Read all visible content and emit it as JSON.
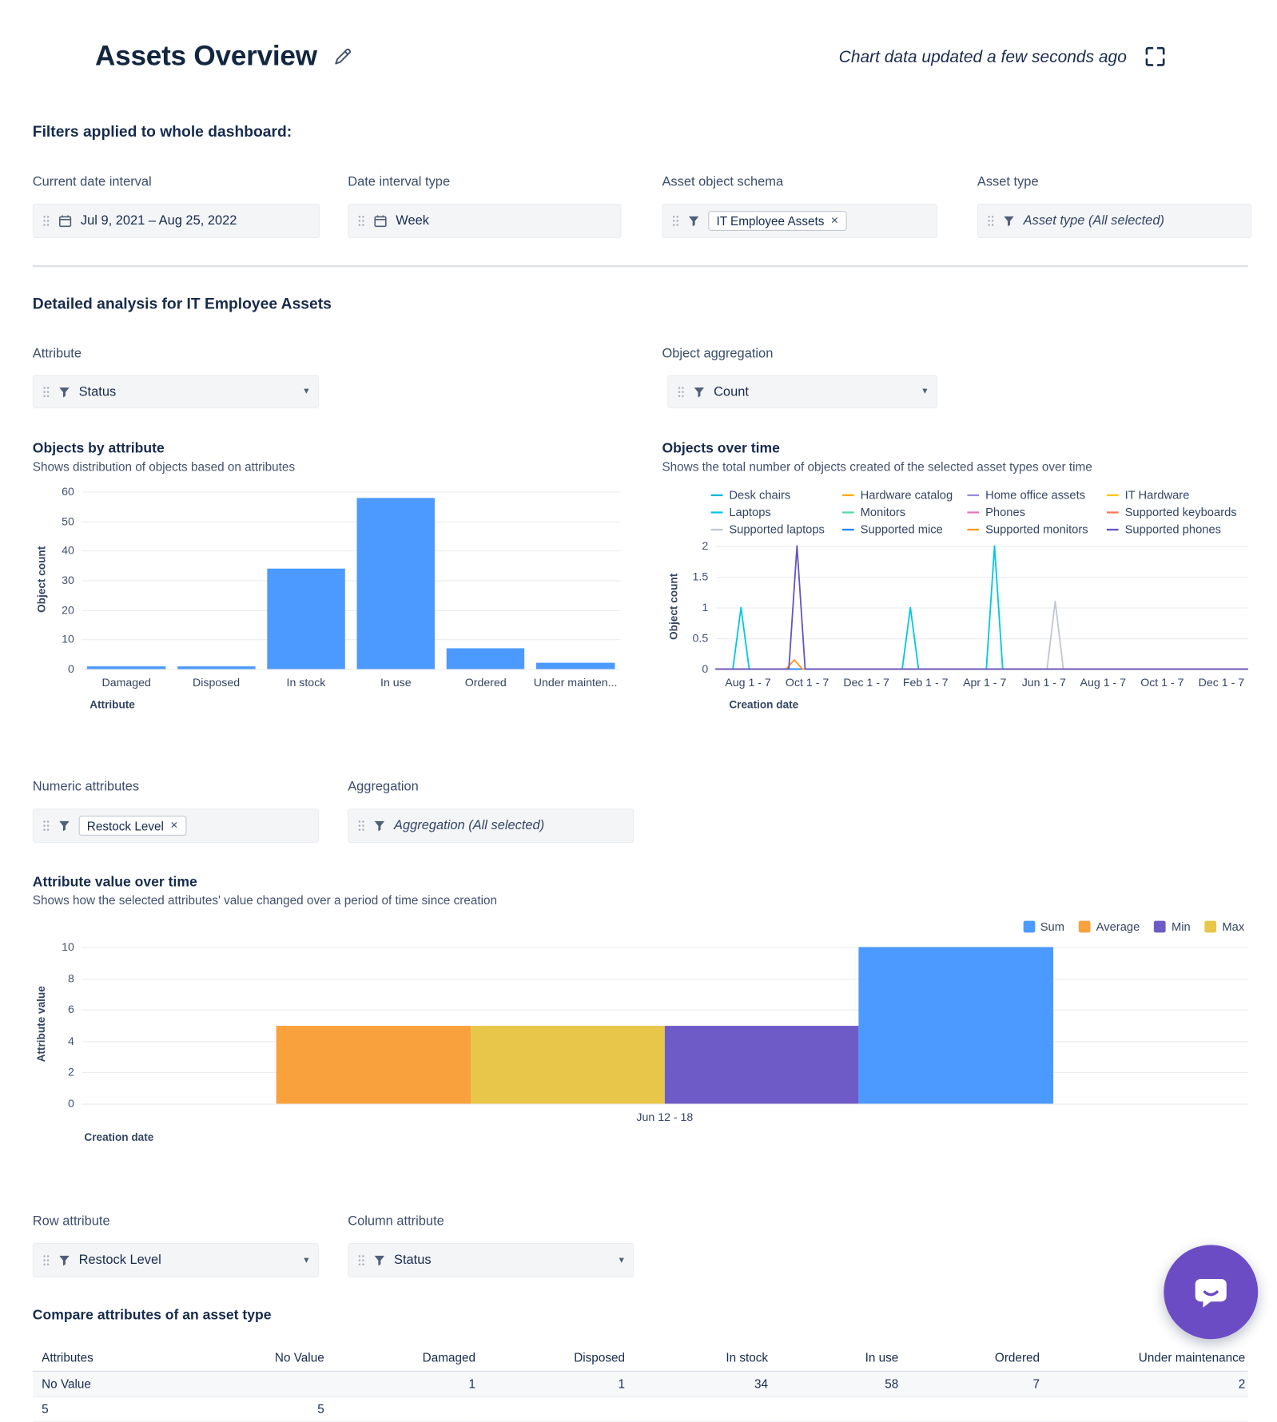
{
  "header": {
    "title": "Assets Overview",
    "updated_text": "Chart data updated a few seconds ago"
  },
  "icons": {
    "chevron": "▾",
    "close": "✕"
  },
  "filters": {
    "heading": "Filters applied to whole dashboard:",
    "current_date_interval": {
      "label": "Current date interval",
      "value": "Jul 9, 2021  –  Aug 25, 2022"
    },
    "date_interval_type": {
      "label": "Date interval type",
      "value": "Week"
    },
    "asset_object_schema": {
      "label": "Asset object schema",
      "chip": "IT Employee Assets"
    },
    "asset_type": {
      "label": "Asset type",
      "value": "Asset type (All selected)"
    }
  },
  "detailed": {
    "heading": "Detailed analysis for IT Employee Assets",
    "attribute": {
      "label": "Attribute",
      "value": "Status"
    },
    "object_aggregation": {
      "label": "Object aggregation",
      "value": "Count"
    },
    "numeric_attributes": {
      "label": "Numeric attributes",
      "chip": "Restock Level"
    },
    "aggregation": {
      "label": "Aggregation",
      "value": "Aggregation (All selected)"
    },
    "row_attribute": {
      "label": "Row attribute",
      "value": "Restock Level"
    },
    "column_attribute": {
      "label": "Column attribute",
      "value": "Status"
    }
  },
  "compare": {
    "heading": "Compare attributes of an asset type",
    "table": {
      "headers": [
        "Attributes",
        "No Value",
        "Damaged",
        "Disposed",
        "In stock",
        "In use",
        "Ordered",
        "Under maintenance"
      ],
      "rows": [
        [
          "No Value",
          "",
          "1",
          "1",
          "34",
          "58",
          "7",
          "2"
        ],
        [
          "5",
          "5",
          "",
          "",
          "",
          "",
          "",
          ""
        ]
      ]
    }
  },
  "chart_data": [
    {
      "id": "objects-by-attribute",
      "type": "bar",
      "title": "Objects by attribute",
      "subtitle": "Shows distribution of objects based on attributes",
      "categories": [
        "Damaged",
        "Disposed",
        "In stock",
        "In use",
        "Ordered",
        "Under mainten..."
      ],
      "values": [
        1,
        1,
        34,
        58,
        7,
        2
      ],
      "bar_color": "#4C9AFF",
      "xlabel": "Attribute",
      "ylabel": "Object count",
      "ylim": [
        0,
        60
      ],
      "yticks": [
        0,
        10,
        20,
        30,
        40,
        50,
        60
      ],
      "grid": true,
      "legend_position": "none"
    },
    {
      "id": "objects-over-time",
      "type": "line",
      "title": "Objects over time",
      "subtitle": "Shows the total number of objects created of the selected asset types over time",
      "xlabel": "Creation date",
      "ylabel": "Object count",
      "ylim": [
        0,
        2
      ],
      "yticks": [
        0,
        0.5,
        1,
        1.5,
        2
      ],
      "xticks": [
        "Aug 1 - 7",
        "Oct 1 - 7",
        "Dec 1 - 7",
        "Feb 1 - 7",
        "Apr 1 - 7",
        "Jun 1 - 7",
        "Aug 1 - 7",
        "Oct 1 - 7",
        "Dec 1 - 7"
      ],
      "grid": true,
      "legend_position": "top",
      "series": [
        {
          "name": "Desk chairs",
          "color": "#00B8D9",
          "peaks": []
        },
        {
          "name": "Hardware catalog",
          "color": "#FFAB00",
          "peaks": []
        },
        {
          "name": "Home office assets",
          "color": "#998DD9",
          "peaks": []
        },
        {
          "name": "IT Hardware",
          "color": "#FFC400",
          "peaks": []
        },
        {
          "name": "Laptops",
          "color": "#00C7E6",
          "peaks": [
            {
              "x_frac": 0.048,
              "value": 1
            },
            {
              "x_frac": 0.366,
              "value": 1
            },
            {
              "x_frac": 0.524,
              "value": 2
            }
          ]
        },
        {
          "name": "Monitors",
          "color": "#57D9A3",
          "peaks": []
        },
        {
          "name": "Phones",
          "color": "#E774BB",
          "peaks": []
        },
        {
          "name": "Supported keyboards",
          "color": "#FF7452",
          "peaks": []
        },
        {
          "name": "Supported laptops",
          "color": "#C1C7D0",
          "peaks": [
            {
              "x_frac": 0.638,
              "value": 1.1
            }
          ]
        },
        {
          "name": "Supported mice",
          "color": "#2684FF",
          "peaks": []
        },
        {
          "name": "Supported monitors",
          "color": "#FF991F",
          "peaks": [
            {
              "x_frac": 0.148,
              "value": 0.15
            }
          ]
        },
        {
          "name": "Supported phones",
          "color": "#6554C0",
          "peaks": [
            {
              "x_frac": 0.153,
              "value": 2
            }
          ]
        }
      ]
    },
    {
      "id": "attribute-value-over-time",
      "type": "bar",
      "title": "Attribute value over time",
      "subtitle": "Shows how the selected attributes' value changed over a period of time since creation",
      "categories": [
        "Jun 12 - 18"
      ],
      "series": [
        {
          "name": "Average",
          "color": "#F9A13D",
          "values": [
            5
          ]
        },
        {
          "name": "Max",
          "color": "#E7C64A",
          "values": [
            5
          ]
        },
        {
          "name": "Min",
          "color": "#6F5BC7",
          "values": [
            5
          ]
        },
        {
          "name": "Sum",
          "color": "#4C9AFF",
          "values": [
            10
          ]
        }
      ],
      "legend": [
        {
          "name": "Sum",
          "color": "#4C9AFF"
        },
        {
          "name": "Average",
          "color": "#F9A13D"
        },
        {
          "name": "Min",
          "color": "#6F5BC7"
        },
        {
          "name": "Max",
          "color": "#E7C64A"
        }
      ],
      "xlabel": "Creation date",
      "ylabel": "Attribute value",
      "ylim": [
        0,
        10
      ],
      "yticks": [
        0,
        2,
        4,
        6,
        8,
        10
      ],
      "grid": true,
      "legend_position": "top-right"
    }
  ]
}
